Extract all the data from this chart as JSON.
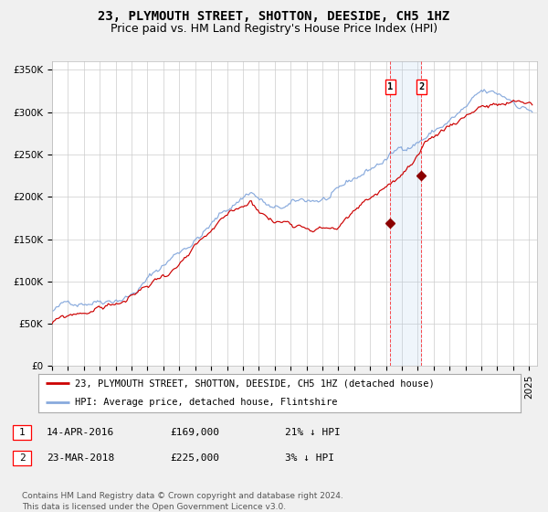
{
  "title": "23, PLYMOUTH STREET, SHOTTON, DEESIDE, CH5 1HZ",
  "subtitle": "Price paid vs. HM Land Registry's House Price Index (HPI)",
  "ylabel_ticks": [
    "£0",
    "£50K",
    "£100K",
    "£150K",
    "£200K",
    "£250K",
    "£300K",
    "£350K"
  ],
  "ytick_values": [
    0,
    50000,
    100000,
    150000,
    200000,
    250000,
    300000,
    350000
  ],
  "ylim": [
    0,
    360000
  ],
  "xlim_start": 1995.0,
  "xlim_end": 2025.5,
  "red_line_color": "#cc0000",
  "blue_line_color": "#88aadd",
  "background_color": "#f0f0f0",
  "plot_bg_color": "#ffffff",
  "grid_color": "#cccccc",
  "sale1_date": 2016.28,
  "sale1_price": 169000,
  "sale2_date": 2018.23,
  "sale2_price": 225000,
  "legend_entry1": "23, PLYMOUTH STREET, SHOTTON, DEESIDE, CH5 1HZ (detached house)",
  "legend_entry2": "HPI: Average price, detached house, Flintshire",
  "table_row1_num": "1",
  "table_row1_date": "14-APR-2016",
  "table_row1_price": "£169,000",
  "table_row1_hpi": "21% ↓ HPI",
  "table_row2_num": "2",
  "table_row2_date": "23-MAR-2018",
  "table_row2_price": "£225,000",
  "table_row2_hpi": "3% ↓ HPI",
  "footer": "Contains HM Land Registry data © Crown copyright and database right 2024.\nThis data is licensed under the Open Government Licence v3.0.",
  "title_fontsize": 10,
  "subtitle_fontsize": 9,
  "tick_fontsize": 7.5,
  "legend_fontsize": 7.5,
  "table_fontsize": 8,
  "footer_fontsize": 6.5
}
